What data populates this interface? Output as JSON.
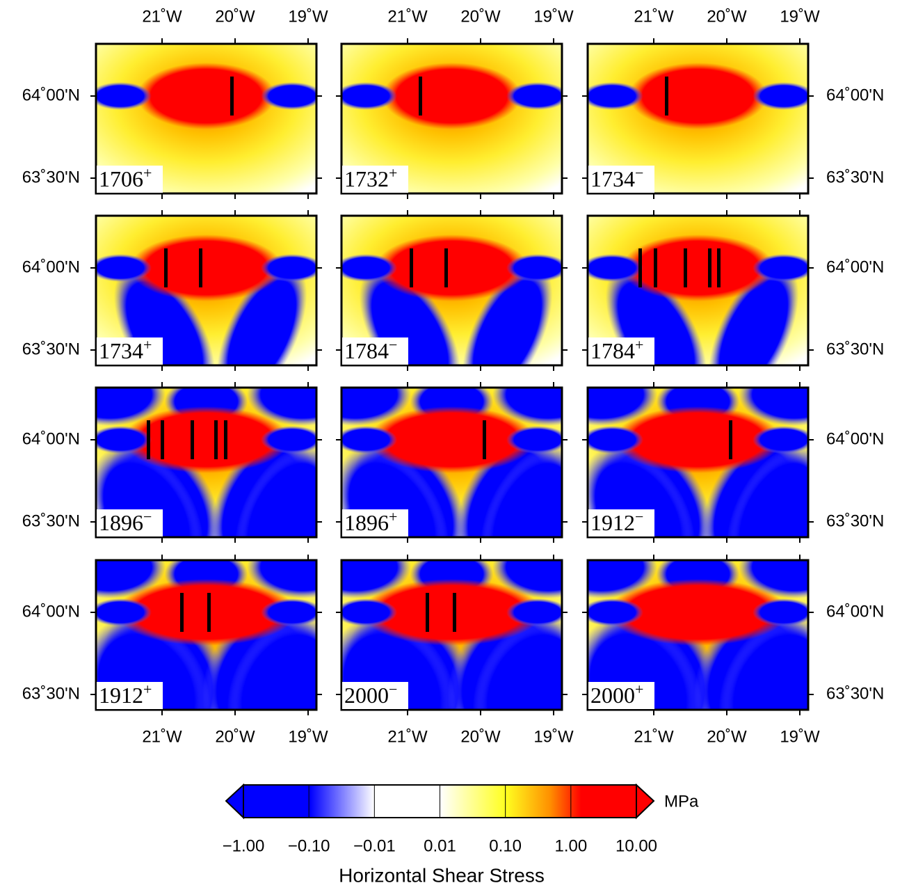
{
  "panels": [
    {
      "label": "1706",
      "sign": "+"
    },
    {
      "label": "1732",
      "sign": "+"
    },
    {
      "label": "1734",
      "sign": "−"
    },
    {
      "label": "1734",
      "sign": "+"
    },
    {
      "label": "1784",
      "sign": "−"
    },
    {
      "label": "1784",
      "sign": "+"
    },
    {
      "label": "1896",
      "sign": "−"
    },
    {
      "label": "1896",
      "sign": "+"
    },
    {
      "label": "1912",
      "sign": "−"
    },
    {
      "label": "1912",
      "sign": "+"
    },
    {
      "label": "2000",
      "sign": "−"
    },
    {
      "label": "2000",
      "sign": "+"
    }
  ],
  "x_ticks": [
    "21˚W",
    "20˚W",
    "19˚W"
  ],
  "y_ticks": [
    "64˚00'N",
    "63˚30'N"
  ],
  "colorbar": {
    "unit": "MPa",
    "title": "Horizontal Shear Stress",
    "ticks": [
      "−1.00",
      "−0.10",
      "−0.01",
      "0.01",
      "0.10",
      "1.00",
      "10.00"
    ]
  }
}
